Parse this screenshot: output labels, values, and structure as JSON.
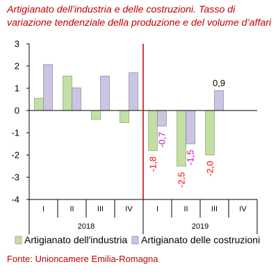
{
  "title": "Artigianato dell’industria e delle costruzioni. Tasso di variazione tendenziale della produzione e del volume d’affari",
  "source": "Fonte: Unioncamere Emilia-Romagna",
  "chart_data": {
    "type": "bar",
    "categories": [
      "I",
      "II",
      "III",
      "IV",
      "I",
      "II",
      "III",
      "IV"
    ],
    "years": [
      {
        "label": "2018",
        "start": 0,
        "end": 3
      },
      {
        "label": "2019",
        "start": 4,
        "end": 7
      }
    ],
    "series": [
      {
        "name": "Artigianato dell'industria",
        "color": "#c4dfa5",
        "stroke": "#7a9a52",
        "values": [
          0.55,
          1.55,
          -0.4,
          -0.55,
          -1.8,
          -2.5,
          -2.0,
          null
        ]
      },
      {
        "name": "Artigianato delle costruzioni",
        "color": "#cbc5e2",
        "stroke": "#7a72a2",
        "values": [
          2.07,
          1.02,
          1.55,
          1.7,
          -0.7,
          -1.5,
          0.9,
          null
        ]
      }
    ],
    "data_labels": [
      {
        "series": 0,
        "index": 4,
        "text": "-1,8",
        "color": "#ff0000"
      },
      {
        "series": 1,
        "index": 4,
        "text": "-0,7",
        "color": "#cc00cc"
      },
      {
        "series": 0,
        "index": 5,
        "text": "-2,5",
        "color": "#ff0000"
      },
      {
        "series": 1,
        "index": 5,
        "text": "-1,5",
        "color": "#cc00cc"
      },
      {
        "series": 0,
        "index": 6,
        "text": "-2,0",
        "color": "#ff0000"
      },
      {
        "series": 1,
        "index": 6,
        "text": "0,9",
        "color": "#000000"
      }
    ],
    "yticks": [
      3,
      2,
      1,
      0,
      -1,
      -2,
      -3,
      -4
    ],
    "ylim": [
      -4,
      3
    ],
    "divider_after_index": 3,
    "divider_color": "#c00000",
    "grid": false,
    "legend_position": "bottom"
  }
}
